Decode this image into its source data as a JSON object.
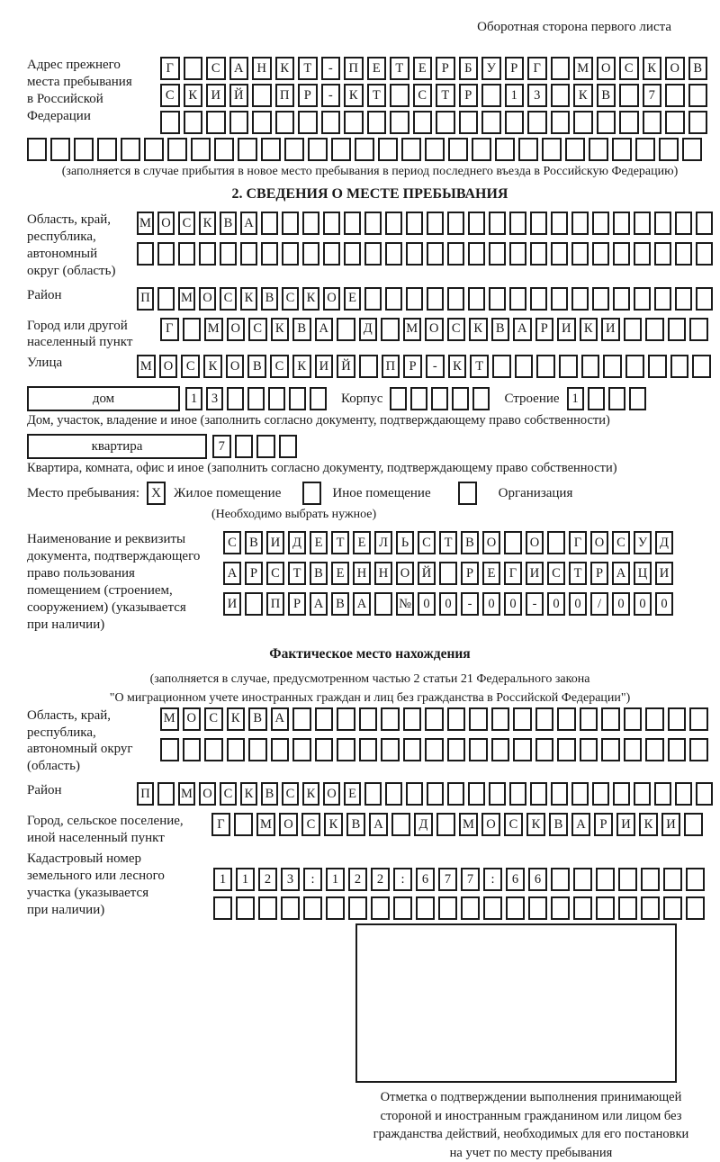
{
  "page": {
    "header_note": "Оборотная сторона первого листа",
    "ink_color": "#1a1a1a",
    "paper_color": "#ffffff"
  },
  "prev_address": {
    "label": "Адрес прежнего\nместа пребывания\nв Российской\nФедерации",
    "rows": [
      {
        "text": "Г САНКТ-ПЕТЕРБУРГ МОСКОВ",
        "len": 24
      },
      {
        "text": "СКИЙ ПР-КТ СТР 13 КВ 7",
        "len": 24
      },
      {
        "text": "",
        "len": 24
      },
      {
        "text": "",
        "len": 29
      }
    ],
    "note": "(заполняется в случае прибытия в новое место пребывания в период последнего въезда в Российскую Федерацию)"
  },
  "section2": {
    "title": "2. СВЕДЕНИЯ О МЕСТЕ ПРЕБЫВАНИЯ",
    "region": {
      "label": "Область, край,\nреспублика,\nавтономный\nокруг (область)",
      "rows": [
        {
          "text": "МОСКВА",
          "len": 28
        },
        {
          "text": "",
          "len": 28
        }
      ]
    },
    "district": {
      "label": "Район",
      "row": {
        "text": "П МОСКВСКОЕ",
        "len": 28
      }
    },
    "city": {
      "label": "Город или другой\nнаселенный пункт",
      "row": {
        "text": "Г МОСКВА Д МОСКВАРИКИ",
        "len": 25
      }
    },
    "street": {
      "label": "Улица",
      "row": {
        "text": "МОСКОВСКИЙ ПР-КТ",
        "len": 26
      }
    },
    "house": {
      "box_label": "дом",
      "house_row": {
        "text": "13",
        "len": 7
      },
      "korpus_label": "Корпус",
      "korpus_row": {
        "text": "",
        "len": 5
      },
      "stroenie_label": "Строение",
      "stroenie_row": {
        "text": "1",
        "len": 4
      },
      "note": "Дом, участок, владение и иное (заполнить согласно документу, подтверждающему право собственности)"
    },
    "apartment": {
      "box_label": "квартира",
      "row": {
        "text": "7",
        "len": 4
      },
      "note": "Квартира, комната, офис и иное (заполнить согласно документу, подтверждающему право собственности)"
    },
    "stay_type": {
      "label": "Место пребывания:",
      "options": [
        {
          "label": "Жилое помещение",
          "mark": "X"
        },
        {
          "label": "Иное помещение",
          "mark": ""
        },
        {
          "label": "Организация",
          "mark": ""
        }
      ],
      "note": "(Необходимо выбрать нужное)"
    },
    "document": {
      "label": "Наименование и реквизиты\nдокумента, подтверждающего\nправо пользования\nпомещением (строением,\nсооружением) (указывается\nпри наличии)",
      "rows": [
        {
          "text": "СВИДЕТЕЛЬСТВО О ГОСУД",
          "len": 21
        },
        {
          "text": "АРСТВЕННОЙ РЕГИСТРАЦИ",
          "len": 21
        },
        {
          "text": "И ПРАВА №00-00-00/000",
          "len": 21
        }
      ]
    }
  },
  "factual": {
    "title": "Фактическое место нахождения",
    "note_line1": "(заполняется в случае, предусмотренном частью 2 статьи 21 Федерального закона",
    "note_line2": "\"О миграционном учете иностранных граждан и лиц без гражданства в Российской Федерации\")",
    "region": {
      "label": "Область, край,\nреспублика,\nавтономный округ\n(область)",
      "rows": [
        {
          "text": "МОСКВА",
          "len": 25
        },
        {
          "text": "",
          "len": 25
        }
      ]
    },
    "district": {
      "label": "Район",
      "row": {
        "text": "П МОСКВСКОЕ",
        "len": 28
      }
    },
    "city": {
      "label": "Город, сельское поселение,\nиной населенный пункт",
      "row": {
        "text": "Г МОСКВА Д МОСКВАРИКИ",
        "len": 22
      }
    },
    "cadastral": {
      "label": "Кадастровый номер\nземельного или лесного\nучастка (указывается\nпри наличии)",
      "rows": [
        {
          "text": "1123:122:677:66",
          "len": 22
        },
        {
          "text": "",
          "len": 22
        }
      ]
    }
  },
  "stamp": {
    "caption": "Отметка о подтверждении выполнения принимающей\nстороной и иностранным гражданином или лицом без\nгражданства действий, необходимых для его постановки\nна учет по месту пребывания"
  }
}
